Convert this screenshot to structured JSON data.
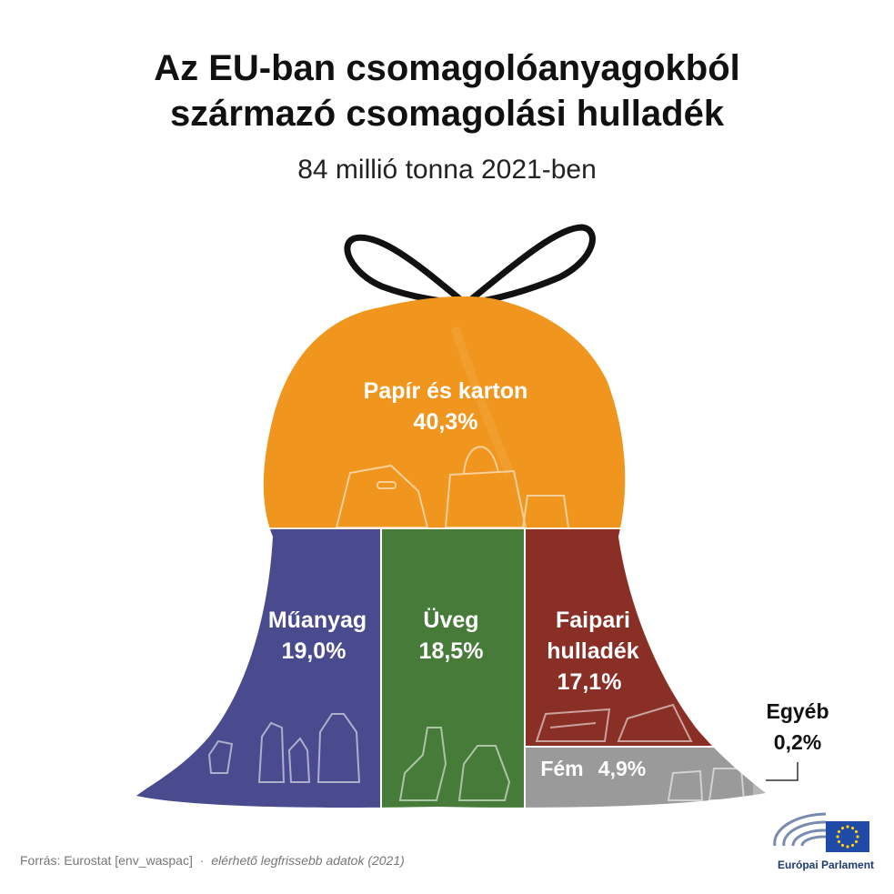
{
  "title_line1": "Az EU-ban csomagolóanyagokból",
  "title_line2": "származó csomagolási hulladék",
  "subtitle": "84 millió tonna 2021-ben",
  "colors": {
    "paper": "#f0961e",
    "plastic": "#4a4b8f",
    "glass": "#477b39",
    "wood": "#8a2f26",
    "metal": "#9a9a9a",
    "other": "#b5b5b5",
    "eu_flag": "#1f4aa8",
    "eu_stars": "#ffd200"
  },
  "chart_data": {
    "type": "area",
    "title": "Az EU-ban csomagolóanyagokból származó csomagolási hulladék",
    "subtitle": "84 millió tonna 2021-ben",
    "unit": "%",
    "categories": [
      "Papír és karton",
      "Műanyag",
      "Üveg",
      "Faipari hulladék",
      "Fém",
      "Egyéb"
    ],
    "values": [
      40.3,
      19.0,
      18.5,
      17.1,
      4.9,
      0.2
    ],
    "value_labels": [
      "40,3%",
      "19,0%",
      "18,5%",
      "17,1%",
      "4,9%",
      "0,2%"
    ]
  },
  "labels": {
    "paper": "Papír és karton",
    "plastic": "Műanyag",
    "glass": "Üveg",
    "wood_line1": "Faipari",
    "wood_line2": "hulladék",
    "metal": "Fém",
    "other": "Egyéb"
  },
  "footer": {
    "source": "Forrás: Eurostat [env_waspac]",
    "separator": "·",
    "note": "elérhető legfrissebb adatok (2021)"
  },
  "logo": {
    "name": "Európai Parlament",
    "icon": "european-parliament-icon"
  }
}
